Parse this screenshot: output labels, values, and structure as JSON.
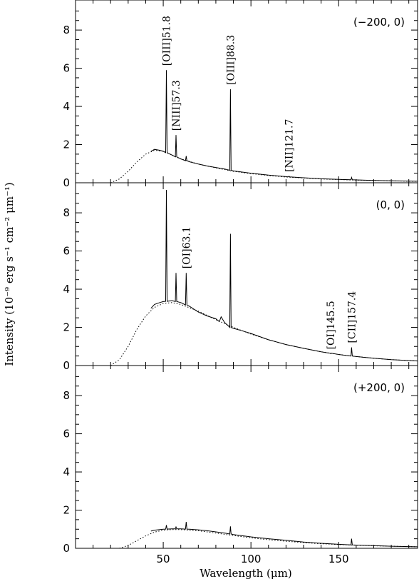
{
  "chart_data": {
    "type": "line",
    "xlabel": "Wavelength (μm)",
    "ylabel": "Intensity (10⁻⁹ erg s⁻¹ cm⁻² μm⁻¹)",
    "xlim": [
      0,
      195
    ],
    "ylim": [
      0,
      9.5
    ],
    "x_ticks": [
      50,
      100,
      150
    ],
    "y_ticks": [
      0,
      2,
      4,
      6,
      8
    ],
    "panels": [
      {
        "position_label": "(−200, 0)",
        "continuum_model": {
          "x": [
            20,
            25,
            30,
            35,
            40,
            45,
            50,
            55,
            60,
            70,
            80,
            90,
            100,
            110,
            120,
            130,
            140,
            150,
            160,
            170,
            180,
            190,
            195
          ],
          "y": [
            0.0,
            0.2,
            0.6,
            1.1,
            1.5,
            1.7,
            1.65,
            1.45,
            1.25,
            0.98,
            0.78,
            0.6,
            0.48,
            0.38,
            0.3,
            0.25,
            0.2,
            0.17,
            0.14,
            0.12,
            0.1,
            0.08,
            0.07
          ]
        },
        "spectrum": {
          "x": [
            43,
            45,
            48,
            50,
            55,
            60,
            65,
            70,
            75,
            80,
            85,
            90,
            100,
            110,
            120,
            130,
            140,
            150,
            160,
            170,
            180,
            190,
            195
          ],
          "y": [
            1.65,
            1.75,
            1.7,
            1.65,
            1.45,
            1.25,
            1.1,
            0.98,
            0.88,
            0.8,
            0.72,
            0.62,
            0.5,
            0.4,
            0.32,
            0.26,
            0.21,
            0.18,
            0.15,
            0.12,
            0.1,
            0.09,
            0.08
          ]
        },
        "lines": [
          {
            "x": 51.8,
            "peak": 5.9,
            "label": "[OIII]51.8"
          },
          {
            "x": 57.3,
            "peak": 2.5,
            "label": "[NIII]57.3"
          },
          {
            "x": 63.1,
            "peak": 1.4,
            "label": ""
          },
          {
            "x": 88.3,
            "peak": 4.9,
            "label": "[OIII]88.3"
          },
          {
            "x": 121.7,
            "peak": 0.34,
            "label": "[NII]121.7"
          },
          {
            "x": 157.4,
            "peak": 0.28,
            "label": ""
          }
        ]
      },
      {
        "position_label": "(0, 0)",
        "continuum_model": {
          "x": [
            20,
            25,
            30,
            35,
            40,
            45,
            50,
            55,
            60,
            70,
            80,
            90,
            100,
            110,
            120,
            130,
            140,
            150,
            160,
            170,
            180,
            190,
            195
          ],
          "y": [
            0.0,
            0.3,
            1.0,
            1.9,
            2.6,
            3.05,
            3.25,
            3.3,
            3.2,
            2.85,
            2.4,
            2.0,
            1.65,
            1.35,
            1.1,
            0.9,
            0.72,
            0.58,
            0.47,
            0.38,
            0.31,
            0.26,
            0.24
          ]
        },
        "spectrum": {
          "x": [
            43,
            45,
            48,
            50,
            55,
            60,
            65,
            70,
            75,
            80,
            82,
            83,
            85,
            88,
            90,
            95,
            100,
            110,
            120,
            130,
            140,
            150,
            160,
            170,
            180,
            190,
            195
          ],
          "y": [
            3.0,
            3.2,
            3.3,
            3.35,
            3.4,
            3.3,
            3.1,
            2.8,
            2.6,
            2.45,
            2.3,
            2.55,
            2.25,
            2.0,
            1.95,
            1.82,
            1.68,
            1.35,
            1.1,
            0.9,
            0.72,
            0.58,
            0.47,
            0.38,
            0.31,
            0.26,
            0.24
          ]
        },
        "lines": [
          {
            "x": 51.8,
            "peak": 9.2,
            "label": ""
          },
          {
            "x": 57.3,
            "peak": 4.85,
            "label": ""
          },
          {
            "x": 63.1,
            "peak": 4.85,
            "label": "[OI]63.1"
          },
          {
            "x": 88.3,
            "peak": 6.9,
            "label": ""
          },
          {
            "x": 145.5,
            "peak": 0.62,
            "label": "[OI]145.5"
          },
          {
            "x": 157.4,
            "peak": 0.95,
            "label": "[CII]157.4"
          }
        ]
      },
      {
        "position_label": "(+200, 0)",
        "continuum_model": {
          "x": [
            25,
            30,
            35,
            40,
            45,
            50,
            55,
            60,
            70,
            80,
            90,
            100,
            110,
            120,
            130,
            140,
            150,
            160,
            170,
            180,
            190,
            195
          ],
          "y": [
            0.0,
            0.15,
            0.4,
            0.65,
            0.85,
            0.95,
            0.98,
            0.98,
            0.92,
            0.8,
            0.67,
            0.55,
            0.45,
            0.37,
            0.3,
            0.24,
            0.2,
            0.16,
            0.13,
            0.11,
            0.09,
            0.08
          ]
        },
        "spectrum": {
          "x": [
            43,
            45,
            50,
            55,
            60,
            65,
            70,
            75,
            80,
            85,
            90,
            100,
            110,
            120,
            130,
            140,
            150,
            160,
            170,
            180,
            190,
            195
          ],
          "y": [
            0.9,
            0.95,
            1.0,
            1.02,
            1.02,
            1.0,
            0.97,
            0.92,
            0.86,
            0.8,
            0.72,
            0.6,
            0.5,
            0.42,
            0.33,
            0.26,
            0.21,
            0.17,
            0.14,
            0.11,
            0.09,
            0.08
          ]
        },
        "lines": [
          {
            "x": 51.8,
            "peak": 1.22,
            "label": ""
          },
          {
            "x": 57.3,
            "peak": 1.12,
            "label": ""
          },
          {
            "x": 63.1,
            "peak": 1.38,
            "label": ""
          },
          {
            "x": 88.3,
            "peak": 1.15,
            "label": ""
          },
          {
            "x": 157.4,
            "peak": 0.5,
            "label": ""
          }
        ]
      }
    ]
  }
}
